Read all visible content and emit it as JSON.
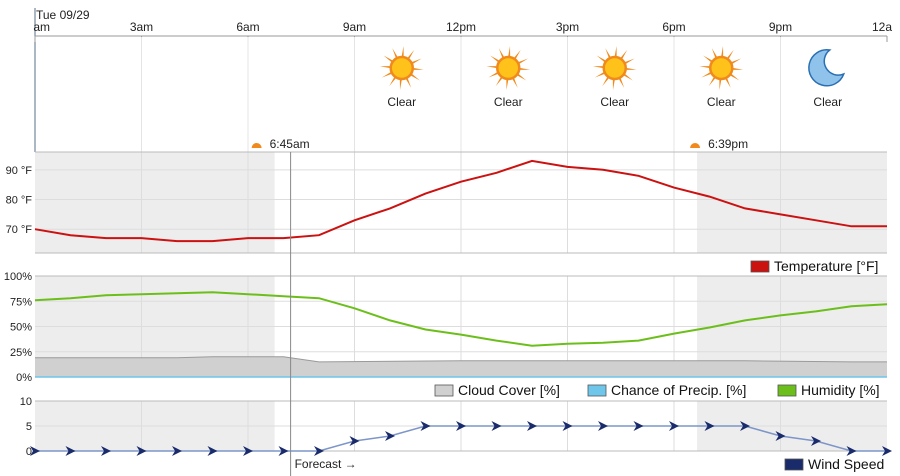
{
  "date_label": "Tue 09/29",
  "time_axis": {
    "labels": [
      "am",
      "3am",
      "6am",
      "9am",
      "12pm",
      "3pm",
      "6pm",
      "9pm",
      "12a"
    ],
    "hours": [
      0,
      3,
      6,
      9,
      12,
      15,
      18,
      21,
      24
    ]
  },
  "sky": [
    {
      "hour": 10.5,
      "icon": "sun-icon",
      "label": "Clear"
    },
    {
      "hour": 13.5,
      "icon": "sun-icon",
      "label": "Clear"
    },
    {
      "hour": 16.5,
      "icon": "sun-icon",
      "label": "Clear"
    },
    {
      "hour": 19.5,
      "icon": "sun-icon",
      "label": "Clear"
    },
    {
      "hour": 22.5,
      "icon": "moon-icon",
      "label": "Clear"
    }
  ],
  "sunrise": {
    "label": "6:45am",
    "hour": 6.75
  },
  "sunset": {
    "label": "6:39pm",
    "hour": 18.65
  },
  "forecast_label": "Forecast →",
  "forecast_start_hour": 7.2,
  "colors": {
    "temperature": "#cc1111",
    "humidity": "#6cbf1b",
    "cloud_cover": "#d0d0d0",
    "cloud_line": "#9a9a9a",
    "precip": "#6ec6ea",
    "wind": "#1a2b6b",
    "night_shade": "#ededed",
    "sun": "#f08a1c"
  },
  "chart_data": [
    {
      "type": "line",
      "title": "",
      "ylim": [
        62,
        96
      ],
      "yticks": [
        70,
        80,
        90
      ],
      "ytick_labels": [
        "70 °F",
        "80 °F",
        "90 °F"
      ],
      "series": [
        {
          "name": "Temperature [°F]",
          "x": [
            0,
            1,
            2,
            3,
            4,
            5,
            6,
            7,
            8,
            9,
            10,
            11,
            12,
            13,
            14,
            15,
            16,
            17,
            18,
            19,
            20,
            21,
            22,
            23,
            24
          ],
          "values": [
            70,
            68,
            67,
            67,
            66,
            66,
            67,
            67,
            68,
            73,
            77,
            82,
            86,
            89,
            93,
            91,
            90,
            88,
            84,
            81,
            77,
            75,
            73,
            71,
            71
          ]
        }
      ]
    },
    {
      "type": "line",
      "title": "",
      "ylim": [
        0,
        100
      ],
      "yticks": [
        0,
        25,
        50,
        75,
        100
      ],
      "ytick_labels": [
        "0%",
        "25%",
        "50%",
        "75%",
        "100%"
      ],
      "series": [
        {
          "name": "Cloud Cover [%]",
          "kind": "area",
          "x": [
            0,
            4,
            5,
            7,
            8,
            12,
            16,
            20,
            23,
            24
          ],
          "values": [
            19,
            19,
            20,
            20,
            15,
            16,
            16,
            16,
            15,
            15
          ]
        },
        {
          "name": "Chance of Precip. [%]",
          "x": [
            0,
            24
          ],
          "values": [
            0,
            0
          ]
        },
        {
          "name": "Humidity [%]",
          "x": [
            0,
            1,
            2,
            3,
            4,
            5,
            6,
            7,
            8,
            9,
            10,
            11,
            12,
            13,
            14,
            15,
            16,
            17,
            18,
            19,
            20,
            21,
            22,
            23,
            24
          ],
          "values": [
            76,
            78,
            81,
            82,
            83,
            84,
            82,
            80,
            78,
            68,
            56,
            47,
            42,
            36,
            31,
            33,
            34,
            36,
            43,
            49,
            56,
            61,
            65,
            70,
            72
          ]
        }
      ]
    },
    {
      "type": "line",
      "title": "",
      "ylim": [
        0,
        10
      ],
      "yticks": [
        0,
        5,
        10
      ],
      "ytick_labels": [
        "0",
        "5",
        "10"
      ],
      "series": [
        {
          "name": "Wind Speed",
          "x": [
            0,
            1,
            2,
            3,
            4,
            5,
            6,
            7,
            8,
            9,
            10,
            11,
            12,
            13,
            14,
            15,
            16,
            17,
            18,
            19,
            20,
            21,
            22,
            23,
            24
          ],
          "values": [
            0,
            0,
            0,
            0,
            0,
            0,
            0,
            0,
            0,
            2,
            3,
            5,
            5,
            5,
            5,
            5,
            5,
            5,
            5,
            5,
            5,
            3,
            2,
            0,
            0
          ]
        }
      ]
    }
  ]
}
